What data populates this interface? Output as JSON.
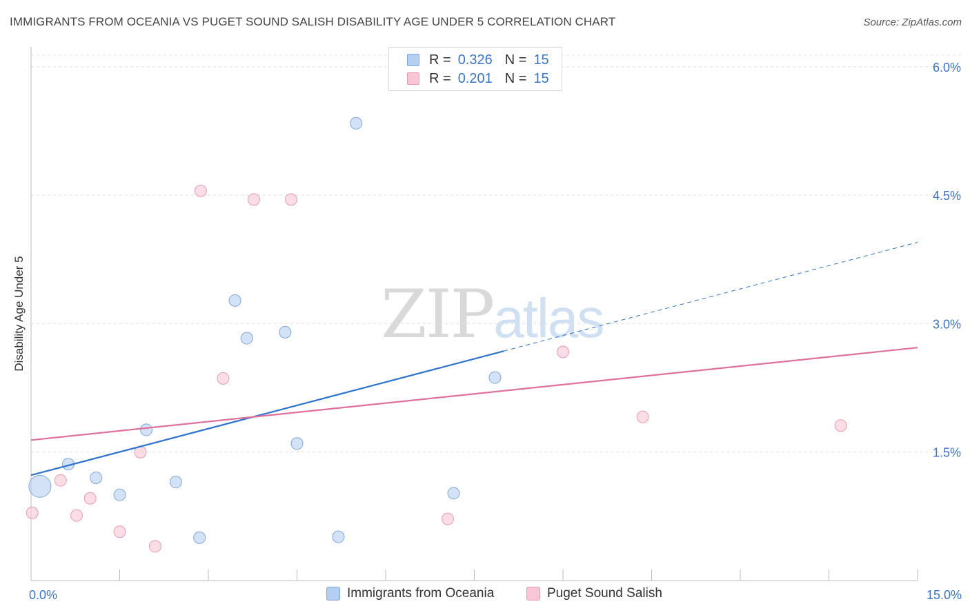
{
  "header": {
    "title": "IMMIGRANTS FROM OCEANIA VS PUGET SOUND SALISH DISABILITY AGE UNDER 5 CORRELATION CHART",
    "source": "Source: ZipAtlas.com"
  },
  "watermark": {
    "zip": "ZIP",
    "atlas": "atlas"
  },
  "legend_top": [
    {
      "r_label": "R =",
      "r_value": "0.326",
      "n_label": "N =",
      "n_value": "15",
      "color": "#b5cff2",
      "border": "#7fa7dd"
    },
    {
      "r_label": "R =",
      "r_value": "0.201",
      "n_label": "N =",
      "n_value": "15",
      "color": "#f8c6d5",
      "border": "#e89ab2"
    }
  ],
  "legend_bottom": [
    {
      "label": "Immigrants from Oceania",
      "color": "#b5cff2",
      "border": "#7fa7dd"
    },
    {
      "label": "Puget Sound Salish",
      "color": "#f8c6d5",
      "border": "#e89ab2"
    }
  ],
  "chart_data": {
    "type": "scatter",
    "title": "IMMIGRANTS FROM OCEANIA VS PUGET SOUND SALISH DISABILITY AGE UNDER 5 CORRELATION CHART",
    "xlabel": "",
    "ylabel": "Disability Age Under 5",
    "xlim": [
      0,
      15
    ],
    "ylim": [
      0,
      6.2
    ],
    "x_tick_labels": [
      {
        "value": 0,
        "label": "0.0%"
      },
      {
        "value": 15,
        "label": "15.0%"
      }
    ],
    "x_minor_ticks": [
      1.5,
      3.0,
      4.5,
      6.0,
      7.5,
      9.0,
      10.5,
      12.0,
      13.5,
      15.0
    ],
    "y_ticks": [
      {
        "value": 1.5,
        "label": "1.5%"
      },
      {
        "value": 3.0,
        "label": "3.0%"
      },
      {
        "value": 4.5,
        "label": "4.5%"
      },
      {
        "value": 6.0,
        "label": "6.0%"
      }
    ],
    "grid": "horizontal-dashed",
    "series": [
      {
        "name": "Immigrants from Oceania",
        "color": "#b5cff2",
        "stroke": "#7fa7dd",
        "line_color": "#2f73d0",
        "r": 0.326,
        "n": 15,
        "points": [
          {
            "x": 0.15,
            "y": 1.1,
            "size": "large"
          },
          {
            "x": 0.63,
            "y": 1.36
          },
          {
            "x": 1.1,
            "y": 1.2
          },
          {
            "x": 1.5,
            "y": 1.0
          },
          {
            "x": 1.95,
            "y": 1.76
          },
          {
            "x": 2.45,
            "y": 1.15
          },
          {
            "x": 2.85,
            "y": 0.5
          },
          {
            "x": 3.45,
            "y": 3.27
          },
          {
            "x": 3.65,
            "y": 2.83
          },
          {
            "x": 4.3,
            "y": 2.9
          },
          {
            "x": 4.5,
            "y": 1.6
          },
          {
            "x": 5.2,
            "y": 0.51
          },
          {
            "x": 5.5,
            "y": 5.34
          },
          {
            "x": 7.15,
            "y": 1.02
          },
          {
            "x": 7.85,
            "y": 2.37
          }
        ],
        "trend": {
          "x0": 0,
          "y0": 1.23,
          "x1": 8.0,
          "y1": 2.68,
          "dashed_to_x": 15,
          "dashed_to_y": 3.95
        }
      },
      {
        "name": "Puget Sound Salish",
        "color": "#f8c6d5",
        "stroke": "#e89ab2",
        "line_color": "#e0709a",
        "r": 0.201,
        "n": 15,
        "points": [
          {
            "x": 0.02,
            "y": 0.79
          },
          {
            "x": 0.5,
            "y": 1.17
          },
          {
            "x": 0.77,
            "y": 0.76
          },
          {
            "x": 1.0,
            "y": 0.96
          },
          {
            "x": 1.5,
            "y": 0.57
          },
          {
            "x": 1.85,
            "y": 1.5
          },
          {
            "x": 2.1,
            "y": 0.4
          },
          {
            "x": 2.87,
            "y": 4.55
          },
          {
            "x": 3.25,
            "y": 2.36
          },
          {
            "x": 3.77,
            "y": 4.45
          },
          {
            "x": 4.4,
            "y": 4.45
          },
          {
            "x": 7.05,
            "y": 0.72
          },
          {
            "x": 9.0,
            "y": 2.67
          },
          {
            "x": 10.35,
            "y": 1.91
          },
          {
            "x": 13.7,
            "y": 1.81
          }
        ],
        "trend": {
          "x0": 0,
          "y0": 1.64,
          "x1": 15,
          "y1": 2.72
        }
      }
    ]
  }
}
